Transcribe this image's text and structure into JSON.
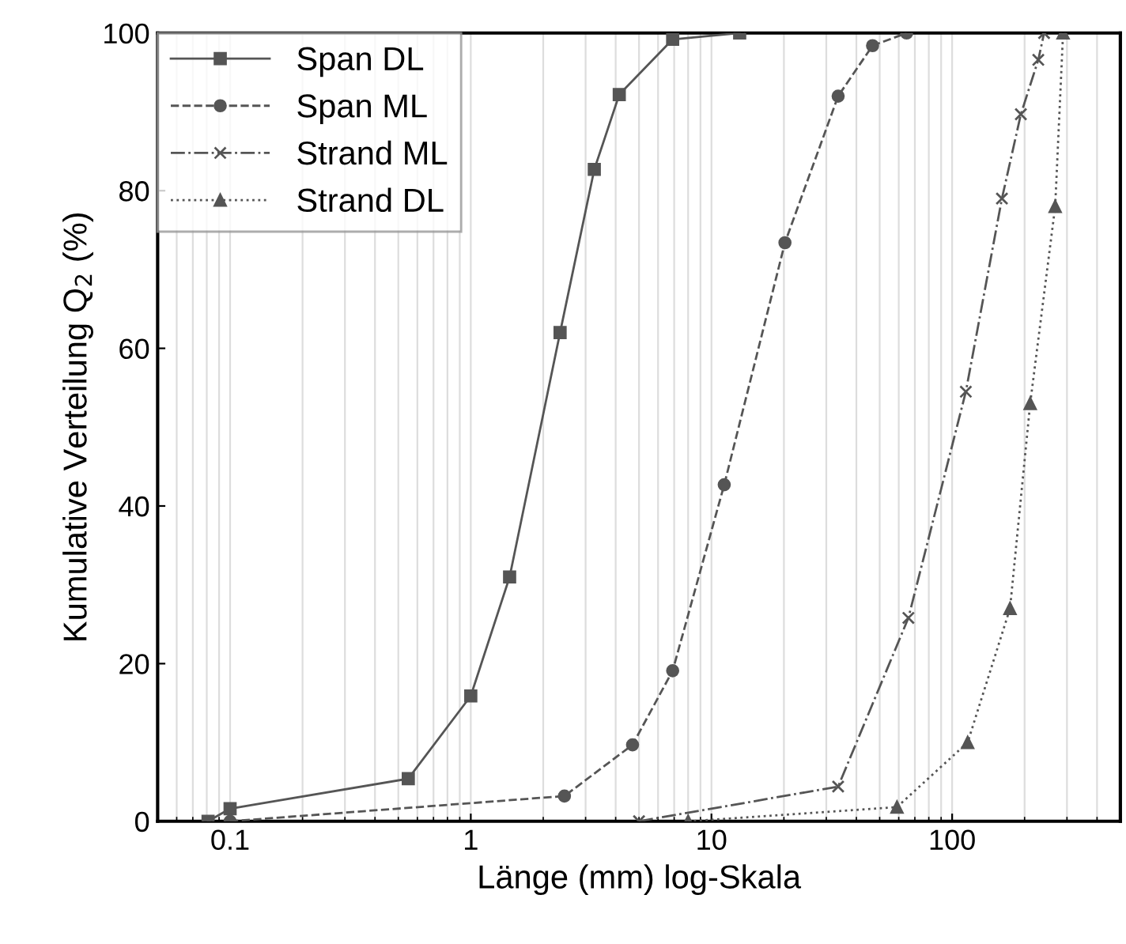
{
  "chart_data": {
    "type": "line",
    "xlabel": "Länge (mm) log-Skala",
    "ylabel": "Kumulative Verteilung Q$_{2}$ (%)",
    "log": "x",
    "xlim": [
      0.05,
      500
    ],
    "ylim": [
      0,
      100
    ],
    "xticks": [
      0.1,
      1,
      10,
      100
    ],
    "yticks": [
      0,
      20,
      40,
      60,
      80,
      100
    ],
    "grid": "x",
    "legend": "top left",
    "series": [
      {
        "name": "Span DL",
        "color": "#555555",
        "marker": "square",
        "line_style": "solid",
        "x": [
          0.081,
          0.1,
          0.55,
          1,
          1.45,
          2.35,
          3.26,
          4.14,
          6.9,
          13.1
        ],
        "values": [
          0,
          1.6,
          5.4,
          15.9,
          31,
          62,
          82.7,
          92.2,
          99.2,
          100
        ]
      },
      {
        "name": "Span ML",
        "color": "#555555",
        "marker": "circle",
        "line_style": "dashed",
        "x": [
          0.1,
          2.45,
          4.7,
          6.9,
          11.3,
          20.2,
          33.6,
          46.7,
          64.7
        ],
        "values": [
          0,
          3.2,
          9.7,
          19.1,
          42.7,
          73.4,
          92,
          98.4,
          100
        ]
      },
      {
        "name": "Strand ML",
        "color": "#555555",
        "marker": "cross",
        "line_style": "dashdot",
        "x": [
          5,
          33.6,
          65.8,
          114,
          161,
          193,
          228,
          241
        ],
        "values": [
          0,
          4.4,
          25.8,
          54.5,
          79,
          89.7,
          96.6,
          100
        ]
      },
      {
        "name": "Strand DL",
        "color": "#555555",
        "marker": "triangle",
        "line_style": "dotted",
        "x": [
          8,
          59,
          116,
          174,
          211,
          268,
          289
        ],
        "values": [
          0,
          1.8,
          10,
          27,
          53,
          78,
          100
        ]
      }
    ]
  }
}
